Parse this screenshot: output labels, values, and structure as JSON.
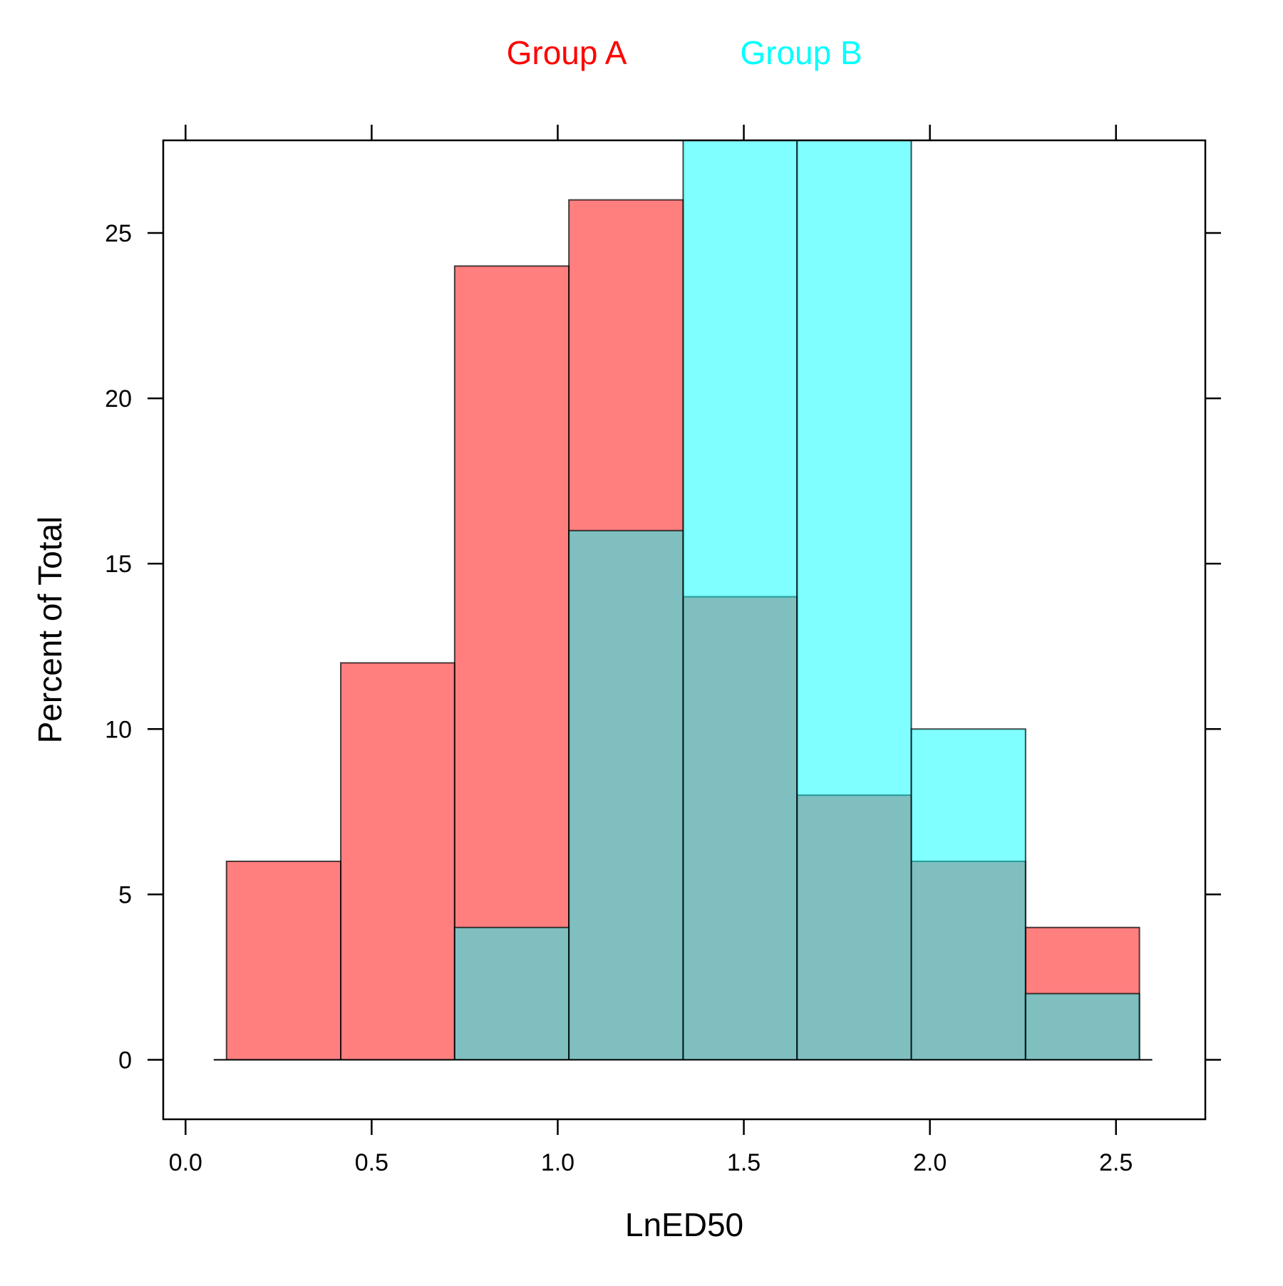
{
  "chart_data": {
    "type": "bar",
    "subtype": "overlaid-histogram",
    "xlabel": "LnED50",
    "ylabel": "Percent of Total",
    "xlim": [
      -0.06,
      2.74
    ],
    "ylim": [
      -1.8,
      27.8
    ],
    "xticks": [
      0.0,
      0.5,
      1.0,
      1.5,
      2.0,
      2.5
    ],
    "xtick_labels": [
      "0.0",
      "0.5",
      "1.0",
      "1.5",
      "2.0",
      "2.5"
    ],
    "yticks": [
      0,
      5,
      10,
      15,
      20,
      25
    ],
    "ytick_labels": [
      "0",
      "5",
      "10",
      "15",
      "20",
      "25"
    ],
    "bin_edges": [
      0.11,
      0.417,
      0.723,
      1.03,
      1.337,
      1.643,
      1.95,
      2.257,
      2.563
    ],
    "legend_position": "top",
    "grid": false,
    "series": [
      {
        "name": "Group A",
        "color": "#ff0000",
        "fill": "#ff0000",
        "fill_opacity": 0.5,
        "values": [
          6,
          12,
          24,
          26,
          14,
          8,
          6,
          4
        ]
      },
      {
        "name": "Group B",
        "color": "#00ffff",
        "fill": "#00ffff",
        "fill_opacity": 0.5,
        "values": [
          0,
          0,
          4,
          16,
          30,
          29,
          10,
          2
        ]
      }
    ]
  }
}
